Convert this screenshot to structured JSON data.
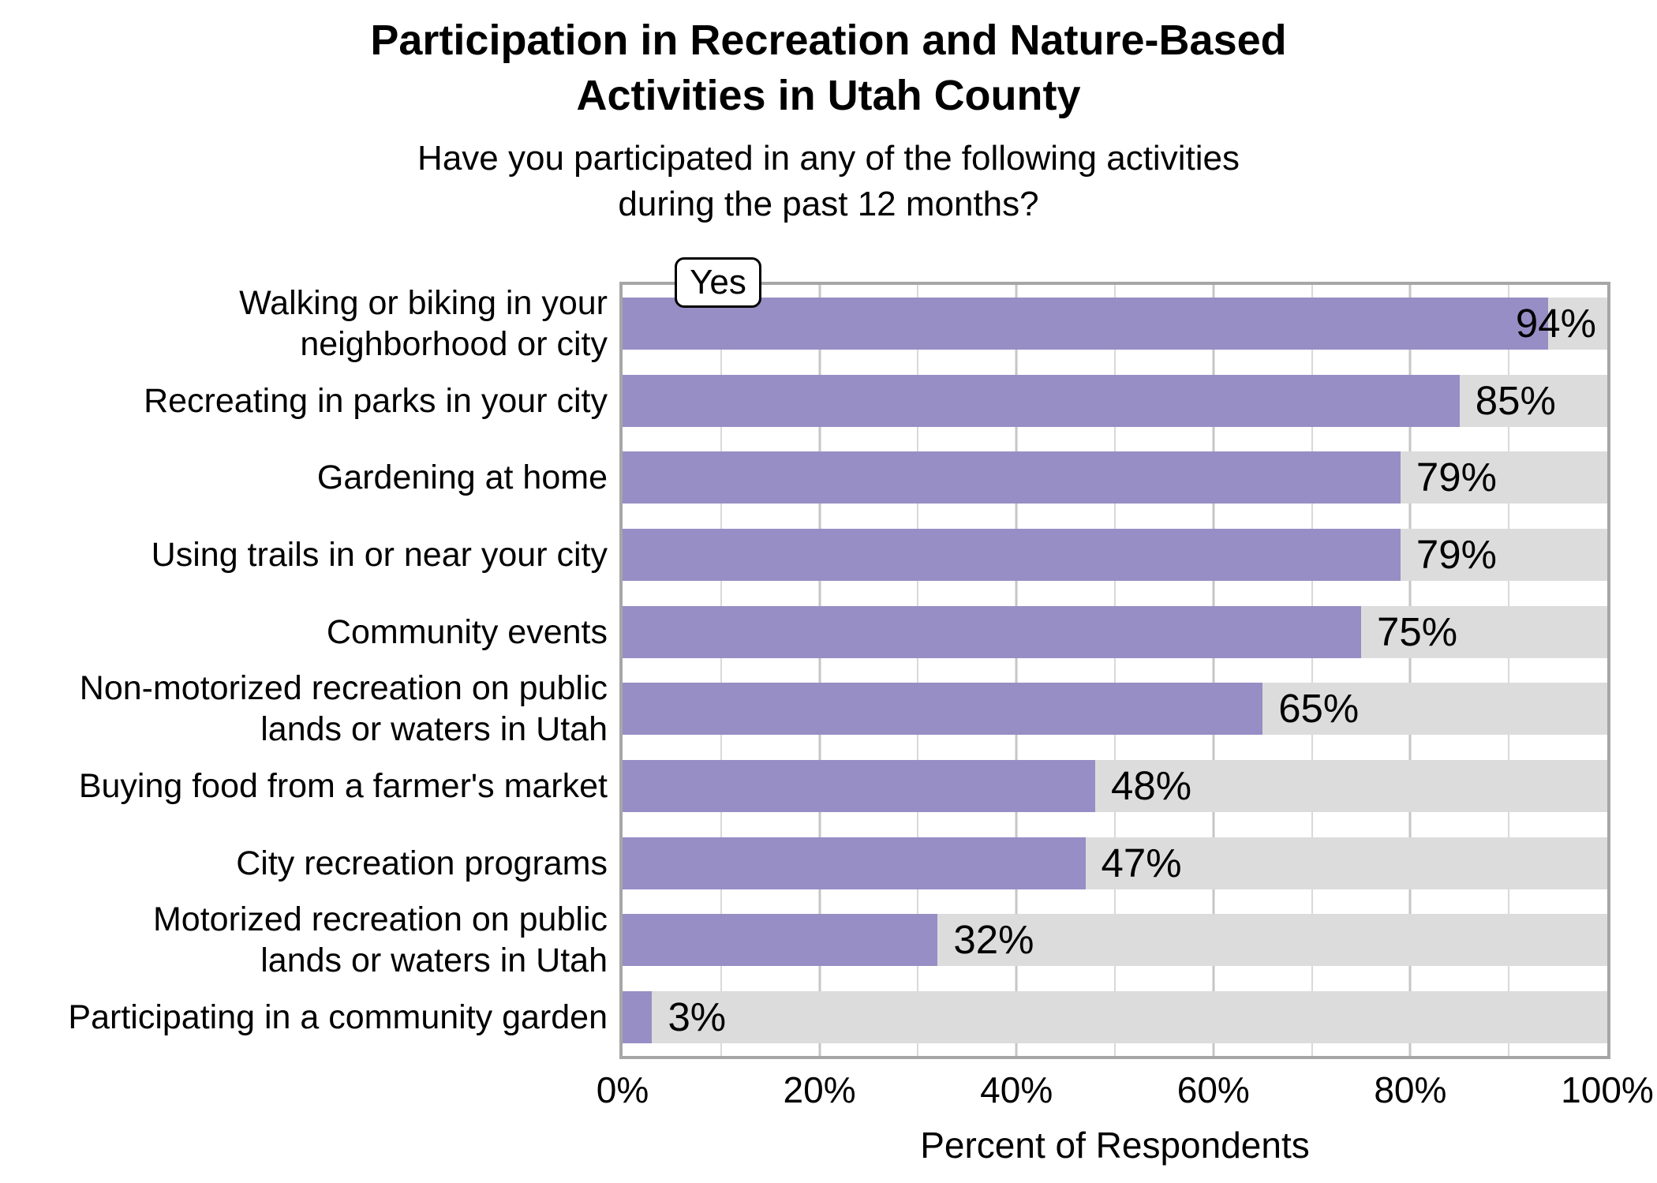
{
  "chart_data": {
    "type": "bar",
    "orientation": "horizontal",
    "title": "Participation in Recreation and Nature-Based\nActivities in Utah County",
    "subtitle": "Have you participated in any of the following activities\nduring the past 12 months?",
    "legend_label": "Yes",
    "xlabel": "Percent of Respondents",
    "xlim": [
      0,
      100
    ],
    "x_ticks": [
      {
        "value": 0,
        "label": "0%"
      },
      {
        "value": 20,
        "label": "20%"
      },
      {
        "value": 40,
        "label": "40%"
      },
      {
        "value": 60,
        "label": "60%"
      },
      {
        "value": 80,
        "label": "80%"
      },
      {
        "value": 100,
        "label": "100%"
      }
    ],
    "minor_gridline_step": 10,
    "major_gridline_step": 20,
    "grid": true,
    "legend_position": "top-left-inside",
    "categories": [
      "Walking or biking in your\nneighborhood or city",
      "Recreating in parks in your city",
      "Gardening at home",
      "Using trails in or near your city",
      "Community events",
      "Non-motorized recreation on public\nlands or waters in Utah",
      "Buying food from a farmer's market",
      "City recreation programs",
      "Motorized recreation on public\nlands or waters in Utah",
      "Participating in a community garden"
    ],
    "values": [
      94,
      85,
      79,
      79,
      75,
      65,
      48,
      47,
      32,
      3
    ],
    "value_labels": [
      "94%",
      "85%",
      "79%",
      "79%",
      "75%",
      "65%",
      "48%",
      "47%",
      "32%",
      "3%"
    ],
    "colors": {
      "bar": "#978ec5",
      "track": "#dcdcdc",
      "panel_border": "#a6a6a6",
      "grid_minor": "#d9d9d9",
      "grid_major": "#c6c6c6",
      "text": "#000000",
      "background": "#ffffff"
    }
  }
}
